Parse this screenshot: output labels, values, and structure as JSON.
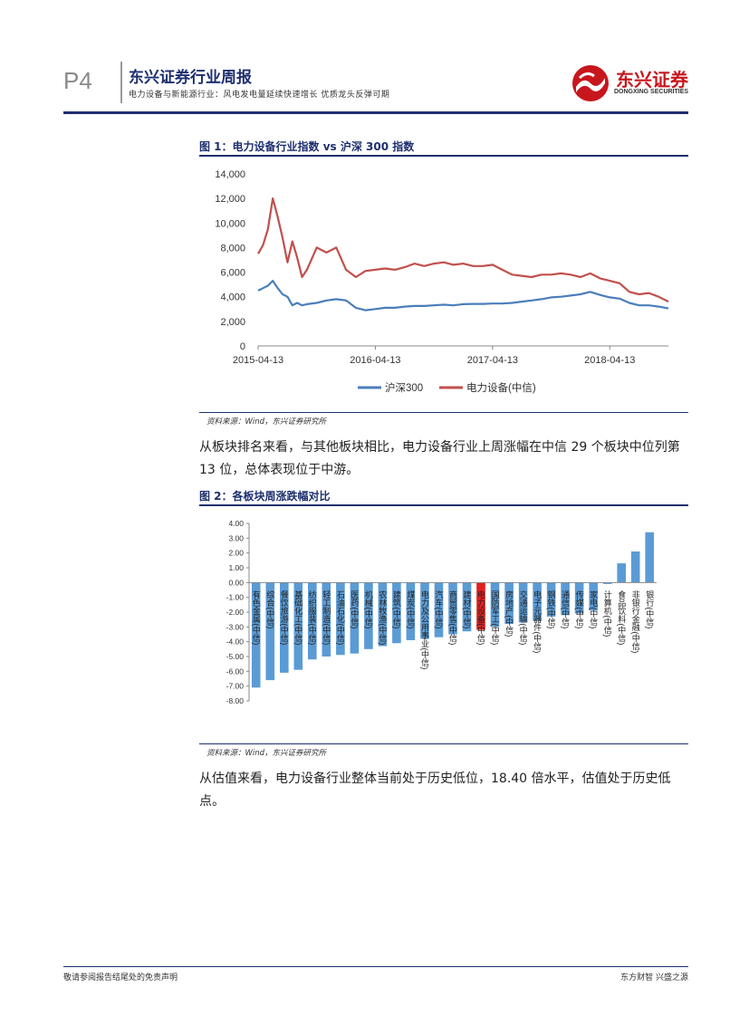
{
  "header": {
    "page_number": "P4",
    "report_title": "东兴证券行业周报",
    "report_subtitle": "电力设备与新能源行业：风电发电量延续快速增长 优质龙头反弹可期",
    "logo_cn": "东兴证券",
    "logo_en": "DONGXING SECURITIES"
  },
  "figure1": {
    "title": "图 1：电力设备行业指数 vs 沪深 300 指数",
    "source": "资料来源：Wind，东兴证券研究所"
  },
  "paragraph1": "从板块排名来看，与其他板块相比，电力设备行业上周涨幅在中信 29 个板块中位列第 13 位，总体表现位于中游。",
  "figure2": {
    "title": "图 2：各板块周涨跌幅对比",
    "source": "资料来源：Wind，东兴证券研究所"
  },
  "paragraph2": "从估值来看，电力设备行业整体当前处于历史低位，18.40 倍水平，估值处于历史低点。",
  "footer": {
    "left": "敬请参阅报告结尾处的免责声明",
    "right": "东方财智 兴盛之源"
  },
  "colors": {
    "navy": "#1d2f6f",
    "series_blue": "#4a7ebb",
    "series_red": "#c0504d",
    "bar_blue": "#5b9bd5",
    "bar_highlight": "#e02020"
  },
  "chart_data": [
    {
      "type": "line",
      "title": "图 1：电力设备行业指数 vs 沪深 300 指数",
      "ylim": [
        0,
        14000
      ],
      "yticks": [
        "0",
        "2,000",
        "4,000",
        "6,000",
        "8,000",
        "10,000",
        "12,000",
        "14,000"
      ],
      "ytick_values": [
        0,
        2000,
        4000,
        6000,
        8000,
        10000,
        12000,
        14000
      ],
      "xticks": [
        "2015-04-13",
        "2016-04-13",
        "2017-04-13",
        "2018-04-13"
      ],
      "xtick_values": [
        0,
        12,
        24,
        36
      ],
      "xlim": [
        0,
        42
      ],
      "legend": "bottom",
      "series": [
        {
          "name": "沪深300",
          "color": "#4a7ebb",
          "x": [
            0,
            0.5,
            1,
            1.5,
            2,
            2.5,
            3,
            3.5,
            4,
            4.5,
            5,
            6,
            7,
            8,
            9,
            10,
            11,
            12,
            13,
            14,
            15,
            16,
            17,
            18,
            19,
            20,
            21,
            22,
            23,
            24,
            25,
            26,
            27,
            28,
            29,
            30,
            31,
            32,
            33,
            34,
            35,
            36,
            37,
            38,
            39,
            40,
            41,
            42
          ],
          "values": [
            4500,
            4700,
            4900,
            5300,
            4700,
            4200,
            4000,
            3300,
            3500,
            3300,
            3400,
            3500,
            3700,
            3800,
            3700,
            3100,
            2900,
            3000,
            3100,
            3100,
            3200,
            3250,
            3250,
            3300,
            3350,
            3300,
            3400,
            3420,
            3420,
            3450,
            3450,
            3500,
            3600,
            3700,
            3800,
            3950,
            4000,
            4100,
            4200,
            4400,
            4150,
            3950,
            3850,
            3500,
            3300,
            3300,
            3200,
            3050
          ]
        },
        {
          "name": "电力设备(中信)",
          "color": "#c0504d",
          "x": [
            0,
            0.5,
            1,
            1.5,
            2,
            2.5,
            3,
            3.5,
            4,
            4.5,
            5,
            6,
            7,
            8,
            9,
            10,
            11,
            12,
            13,
            14,
            15,
            16,
            17,
            18,
            19,
            20,
            21,
            22,
            23,
            24,
            25,
            26,
            27,
            28,
            29,
            30,
            31,
            32,
            33,
            34,
            35,
            36,
            37,
            38,
            39,
            40,
            41,
            42
          ],
          "values": [
            7500,
            8200,
            9500,
            12000,
            10500,
            8800,
            6800,
            8500,
            7200,
            5600,
            6200,
            8000,
            7600,
            8000,
            6200,
            5600,
            6100,
            6200,
            6300,
            6200,
            6400,
            6700,
            6500,
            6700,
            6800,
            6600,
            6700,
            6500,
            6500,
            6600,
            6200,
            5800,
            5700,
            5600,
            5800,
            5800,
            5900,
            5800,
            5600,
            5900,
            5500,
            5300,
            5100,
            4400,
            4200,
            4300,
            4000,
            3600
          ]
        }
      ]
    },
    {
      "type": "bar",
      "title": "图 2：各板块周涨跌幅对比",
      "ylim": [
        -8,
        4
      ],
      "yticks": [
        "4.00",
        "3.00",
        "2.00",
        "1.00",
        "0.00",
        "-1.00",
        "-2.00",
        "-3.00",
        "-4.00",
        "-5.00",
        "-6.00",
        "-7.00",
        "-8.00"
      ],
      "ytick_values": [
        4,
        3,
        2,
        1,
        0,
        -1,
        -2,
        -3,
        -4,
        -5,
        -6,
        -7,
        -8
      ],
      "categories": [
        "有色金属(中信)",
        "综合(中信)",
        "餐饮旅游(中信)",
        "基础化工(中信)",
        "纺织服装(中信)",
        "轻工制造(中信)",
        "石油石化(中信)",
        "医药(中信)",
        "机械(中信)",
        "农林牧渔(中信)",
        "建筑(中信)",
        "煤炭(中信)",
        "电力及公用事业(中信)",
        "汽车(中信)",
        "商贸零售(中信)",
        "建材(中信)",
        "电力设备(中信)",
        "国防军工(中信)",
        "房地产(中信)",
        "交通运输(中信)",
        "电子元器件(中信)",
        "钢铁(中信)",
        "通信(中信)",
        "传媒(中信)",
        "家电(中信)",
        "计算机(中信)",
        "食品饮料(中信)",
        "非银行金融(中信)",
        "银行(中信)"
      ],
      "values": [
        -7.1,
        -6.6,
        -6.1,
        -5.9,
        -5.2,
        -5.0,
        -4.9,
        -4.8,
        -4.5,
        -4.3,
        -4.1,
        -3.9,
        -3.8,
        -3.7,
        -3.5,
        -3.3,
        -3.2,
        -3.0,
        -2.8,
        -2.7,
        -2.6,
        -2.3,
        -2.2,
        -2.1,
        -1.9,
        -0.1,
        1.3,
        2.1,
        3.4
      ],
      "highlight": "电力设备(中信)"
    }
  ]
}
